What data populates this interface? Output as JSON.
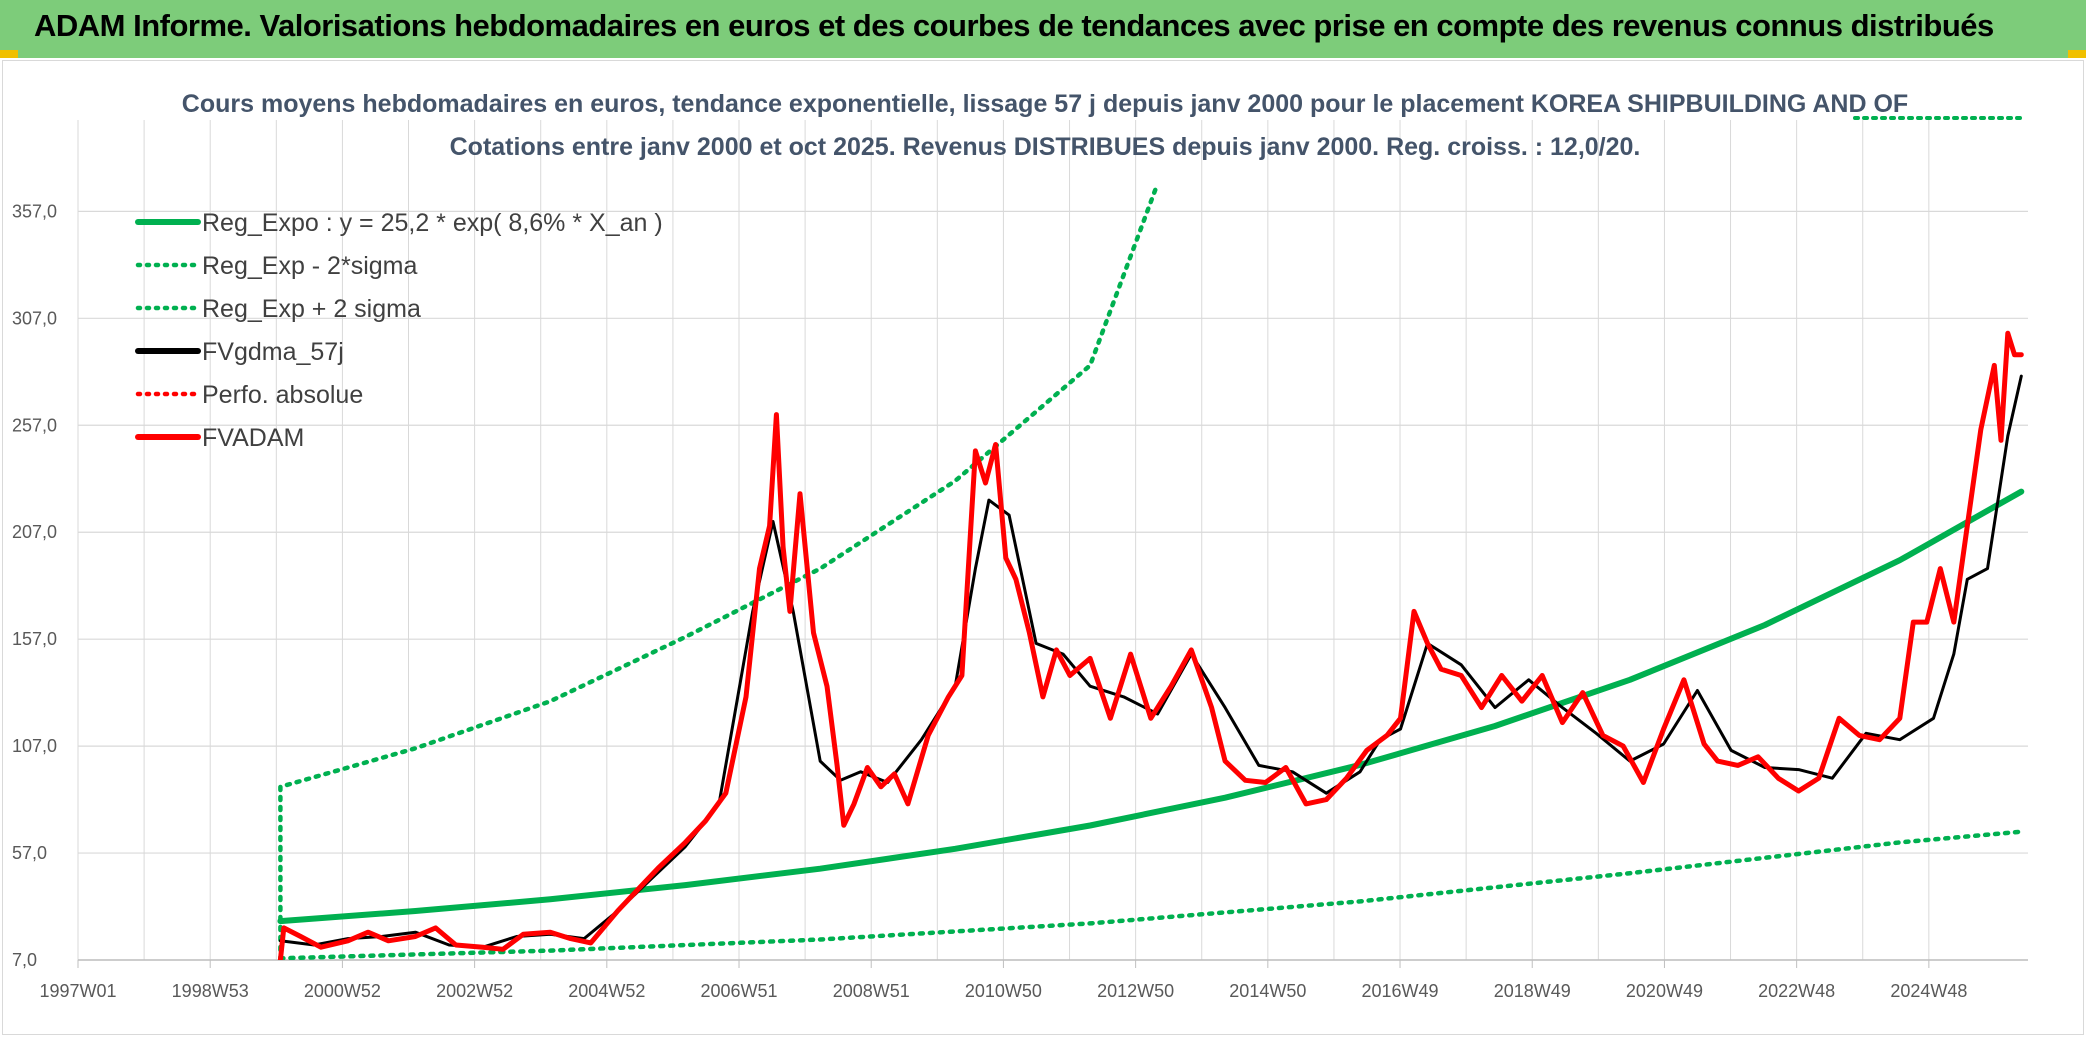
{
  "header": {
    "title": "ADAM Informe. Valorisations hebdomadaires en euros et des courbes de tendances avec prise en compte des revenus connus distribués"
  },
  "colors": {
    "banner": "#7dcc7a",
    "reg_green": "#00b050",
    "fvadam_red": "#ff0000",
    "fvgdma_black": "#000000",
    "grid": "#d9d9d9"
  },
  "chart_data": {
    "type": "line",
    "title": "Cours moyens hebdomadaires en euros, tendance exponentielle, lissage 57 j depuis janv 2000 pour le placement KOREA SHIPBUILDING AND OF",
    "subtitle": "Cotations entre janv 2000 et oct 2025. Revenus DISTRIBUES depuis janv 2000. Reg. croiss. : 12,0/20.",
    "x_tick_labels": [
      "1997W01",
      "1998W53",
      "2000W52",
      "2002W52",
      "2004W52",
      "2006W51",
      "2008W51",
      "2010W50",
      "2012W50",
      "2014W50",
      "2016W49",
      "2018W49",
      "2020W49",
      "2022W48",
      "2024W48"
    ],
    "xlim": [
      1997.0,
      2025.9
    ],
    "y_tick_labels": [
      "7,0",
      "57,0",
      "107,0",
      "157,0",
      "207,0",
      "257,0",
      "307,0",
      "357,0"
    ],
    "y_ticks": [
      7,
      57,
      107,
      157,
      207,
      257,
      307,
      357
    ],
    "ylim": [
      7,
      367
    ],
    "grid": true,
    "legend_position": "top-left",
    "legend": [
      {
        "label": "Reg_Expo : y = 25,2 * exp( 8,6% *  X_an )",
        "color": "#00b050",
        "style": "solid"
      },
      {
        "label": "Reg_Exp - 2*sigma",
        "color": "#00b050",
        "style": "dotted"
      },
      {
        "label": "Reg_Exp + 2 sigma",
        "color": "#00b050",
        "style": "dotted"
      },
      {
        "label": "FVgdma_57j",
        "color": "#000000",
        "style": "solid"
      },
      {
        "label": "Perfo. absolue",
        "color": "#ff0000",
        "style": "dotted"
      },
      {
        "label": "FVADAM",
        "color": "#ff0000",
        "style": "solid"
      }
    ],
    "series": [
      {
        "name": "Reg_Expo : y = 25,2 * exp( 8,6% *  X_an )",
        "x": [
          2000.0,
          2002.0,
          2004.0,
          2006.0,
          2008.0,
          2010.0,
          2012.0,
          2014.0,
          2016.0,
          2018.0,
          2020.0,
          2022.0,
          2024.0,
          2025.8
        ],
        "values": [
          25.2,
          29.9,
          35.4,
          42.0,
          49.7,
          59.0,
          69.9,
          82.9,
          98.2,
          116.4,
          138.0,
          163.6,
          193.9,
          226.0
        ]
      },
      {
        "name": "Reg_Exp - 2*sigma",
        "x": [
          2000.0,
          2004.0,
          2008.0,
          2012.0,
          2016.0,
          2020.0,
          2024.0,
          2025.8
        ],
        "values": [
          7.8,
          11.4,
          16.6,
          24.1,
          34.4,
          47.6,
          62.0,
          67.0
        ]
      },
      {
        "name": "Reg_Exp + 2 sigma",
        "x": [
          2000.0,
          2000.0,
          2002.0,
          2004.0,
          2006.0,
          2008.0,
          2010.0,
          2012.0,
          2013.0
        ],
        "values": [
          7.0,
          88.0,
          106.0,
          128.0,
          158.0,
          190.0,
          231.0,
          285.0,
          370.0
        ]
      },
      {
        "name": "FVgdma_57j",
        "x": [
          2000.0,
          2000.5,
          2001.0,
          2001.5,
          2002.0,
          2002.5,
          2003.0,
          2003.5,
          2004.0,
          2004.5,
          2005.0,
          2005.5,
          2006.0,
          2006.5,
          2007.0,
          2007.3,
          2007.6,
          2008.0,
          2008.3,
          2008.6,
          2009.0,
          2009.5,
          2010.0,
          2010.3,
          2010.5,
          2010.8,
          2011.2,
          2011.6,
          2012.0,
          2012.5,
          2013.0,
          2013.5,
          2014.0,
          2014.5,
          2015.0,
          2015.5,
          2016.0,
          2016.3,
          2016.6,
          2017.0,
          2017.5,
          2018.0,
          2018.5,
          2019.0,
          2019.5,
          2020.0,
          2020.5,
          2021.0,
          2021.5,
          2022.0,
          2022.5,
          2023.0,
          2023.5,
          2024.0,
          2024.5,
          2024.8,
          2025.0,
          2025.3,
          2025.6,
          2025.8
        ],
        "values": [
          16,
          14,
          17,
          18,
          20,
          14,
          13,
          18,
          19,
          17,
          30,
          45,
          60,
          80,
          170,
          212,
          170,
          100,
          91,
          95,
          90,
          110,
          135,
          190,
          222,
          215,
          155,
          150,
          135,
          130,
          122,
          150,
          125,
          98,
          95,
          85,
          95,
          110,
          115,
          155,
          145,
          125,
          138,
          125,
          113,
          100,
          108,
          133,
          105,
          97,
          96,
          92,
          113,
          110,
          120,
          150,
          185,
          190,
          252,
          280
        ]
      },
      {
        "name": "FVADAM",
        "x": [
          2000.0,
          2000.05,
          2000.3,
          2000.6,
          2001.0,
          2001.3,
          2001.6,
          2002.0,
          2002.3,
          2002.6,
          2003.0,
          2003.3,
          2003.6,
          2004.0,
          2004.3,
          2004.6,
          2005.0,
          2005.3,
          2005.6,
          2006.0,
          2006.3,
          2006.6,
          2006.9,
          2007.1,
          2007.25,
          2007.35,
          2007.45,
          2007.55,
          2007.7,
          2007.9,
          2008.1,
          2008.25,
          2008.35,
          2008.5,
          2008.7,
          2008.9,
          2009.1,
          2009.3,
          2009.6,
          2009.9,
          2010.1,
          2010.3,
          2010.45,
          2010.6,
          2010.75,
          2010.9,
          2011.1,
          2011.3,
          2011.5,
          2011.7,
          2012.0,
          2012.3,
          2012.6,
          2012.9,
          2013.2,
          2013.5,
          2013.8,
          2014.0,
          2014.3,
          2014.6,
          2014.9,
          2015.2,
          2015.5,
          2015.8,
          2016.1,
          2016.4,
          2016.6,
          2016.8,
          2017.0,
          2017.2,
          2017.5,
          2017.8,
          2018.1,
          2018.4,
          2018.7,
          2019.0,
          2019.3,
          2019.6,
          2019.9,
          2020.2,
          2020.5,
          2020.8,
          2021.1,
          2021.3,
          2021.6,
          2021.9,
          2022.2,
          2022.5,
          2022.8,
          2023.1,
          2023.4,
          2023.7,
          2024.0,
          2024.2,
          2024.4,
          2024.6,
          2024.8,
          2025.0,
          2025.2,
          2025.4,
          2025.5,
          2025.6,
          2025.7,
          2025.8
        ],
        "values": [
          7,
          22,
          18,
          13,
          16,
          20,
          16,
          18,
          22,
          14,
          13,
          12,
          19,
          20,
          17,
          15,
          30,
          40,
          50,
          62,
          72,
          85,
          130,
          190,
          210,
          262,
          200,
          170,
          225,
          160,
          135,
          98,
          70,
          80,
          97,
          88,
          94,
          80,
          112,
          130,
          140,
          245,
          230,
          248,
          195,
          185,
          160,
          130,
          152,
          140,
          148,
          120,
          150,
          120,
          135,
          152,
          125,
          100,
          91,
          90,
          97,
          80,
          82,
          92,
          105,
          112,
          120,
          170,
          155,
          143,
          140,
          125,
          140,
          128,
          140,
          118,
          132,
          112,
          107,
          90,
          115,
          138,
          108,
          100,
          98,
          102,
          92,
          86,
          92,
          120,
          112,
          110,
          120,
          165,
          165,
          190,
          165,
          210,
          255,
          285,
          250,
          300,
          290,
          290
        ]
      }
    ]
  }
}
